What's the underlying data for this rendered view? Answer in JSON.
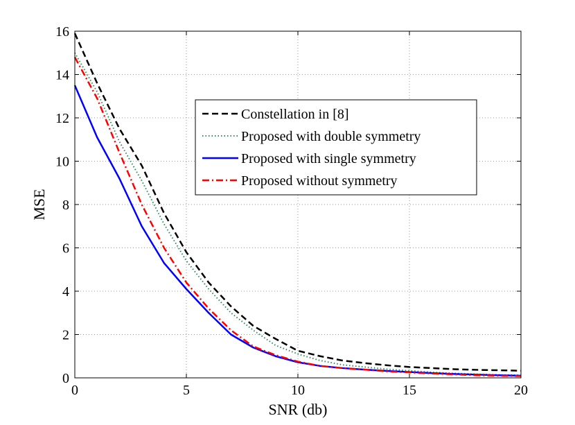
{
  "chart_data": {
    "type": "line",
    "title": "",
    "xlabel": "SNR (db)",
    "ylabel": "MSE",
    "xlim": [
      0,
      20
    ],
    "ylim": [
      0,
      16
    ],
    "xticks": [
      0,
      5,
      10,
      15,
      20
    ],
    "yticks": [
      0,
      2,
      4,
      6,
      8,
      10,
      12,
      14,
      16
    ],
    "grid": true,
    "legend_position": "upper-center",
    "x": [
      0,
      1,
      2,
      3,
      4,
      5,
      6,
      7,
      8,
      9,
      10,
      11,
      12,
      13,
      14,
      15,
      16,
      17,
      18,
      19,
      20
    ],
    "series": [
      {
        "name": "Constellation in [8]",
        "color": "#000000",
        "style": "dashed",
        "values": [
          15.9,
          13.6,
          11.5,
          9.8,
          7.6,
          5.8,
          4.4,
          3.3,
          2.4,
          1.8,
          1.25,
          1.0,
          0.8,
          0.68,
          0.58,
          0.5,
          0.45,
          0.4,
          0.37,
          0.35,
          0.33
        ]
      },
      {
        "name": "Proposed with double symmetry",
        "color": "#2e8b57",
        "style": "dotted",
        "values": [
          15.0,
          13.2,
          10.9,
          9.1,
          7.1,
          5.4,
          4.1,
          3.0,
          2.2,
          1.5,
          1.1,
          0.8,
          0.6,
          0.5,
          0.4,
          0.33,
          0.26,
          0.21,
          0.17,
          0.14,
          0.12
        ]
      },
      {
        "name": "Proposed with single symmetry",
        "color": "#0000ff",
        "style": "solid",
        "values": [
          13.5,
          11.1,
          9.2,
          7.0,
          5.3,
          4.1,
          3.0,
          2.0,
          1.4,
          1.0,
          0.72,
          0.55,
          0.45,
          0.38,
          0.32,
          0.27,
          0.22,
          0.18,
          0.15,
          0.12,
          0.1
        ]
      },
      {
        "name": "Proposed without symmetry",
        "color": "#ff0000",
        "style": "dashdot",
        "values": [
          14.8,
          12.9,
          10.4,
          8.0,
          6.0,
          4.4,
          3.2,
          2.2,
          1.45,
          1.05,
          0.75,
          0.55,
          0.45,
          0.38,
          0.3,
          0.25,
          0.2,
          0.16,
          0.12,
          0.1,
          0.08
        ]
      }
    ]
  }
}
